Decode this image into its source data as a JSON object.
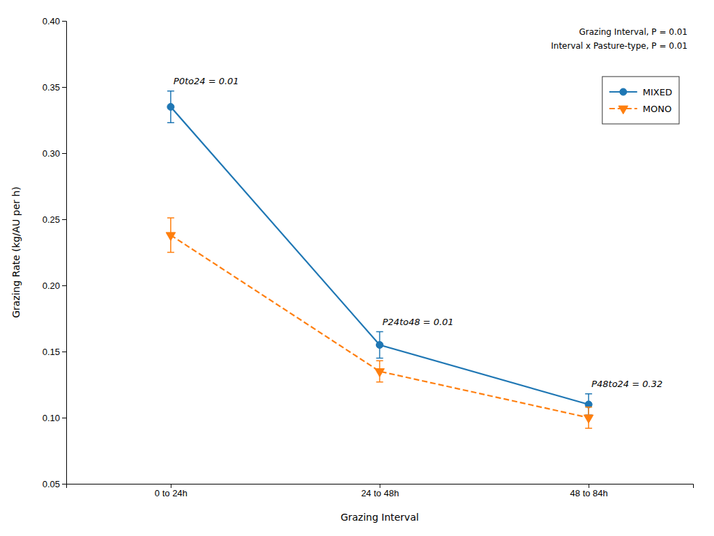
{
  "chart_data": {
    "type": "line",
    "xlabel": "Grazing Interval",
    "ylabel": "Grazing Rate (kg/AU per h)",
    "categories": [
      "0 to 24h",
      "24 to 48h",
      "48 to 84h"
    ],
    "series": [
      {
        "name": "MIXED",
        "marker": "circle",
        "line_style": "solid",
        "values": [
          0.335,
          0.155,
          0.11
        ],
        "errors": [
          0.012,
          0.01,
          0.008
        ]
      },
      {
        "name": "MONO",
        "marker": "triangle-down",
        "line_style": "dashed",
        "values": [
          0.238,
          0.135,
          0.1
        ],
        "errors": [
          0.013,
          0.008,
          0.008
        ]
      }
    ],
    "ylim": [
      0.05,
      0.4
    ],
    "yticks": [
      0.05,
      {
        "value": 0.1,
        "label": "0.10"
      },
      0.15,
      {
        "value": 0.2,
        "label": "0.20"
      },
      0.25,
      {
        "value": 0.3,
        "label": "0.30"
      },
      0.35,
      {
        "value": 0.4,
        "label": "0.40"
      }
    ],
    "annotations": [
      "P0to24 = 0.01",
      "P24to48 = 0.01",
      "P48to24 = 0.32"
    ],
    "stats_text": [
      "Grazing Interval, P = 0.01",
      "Interval x Pasture-type, P = 0.01"
    ],
    "legend": "upper right",
    "grid": false
  }
}
